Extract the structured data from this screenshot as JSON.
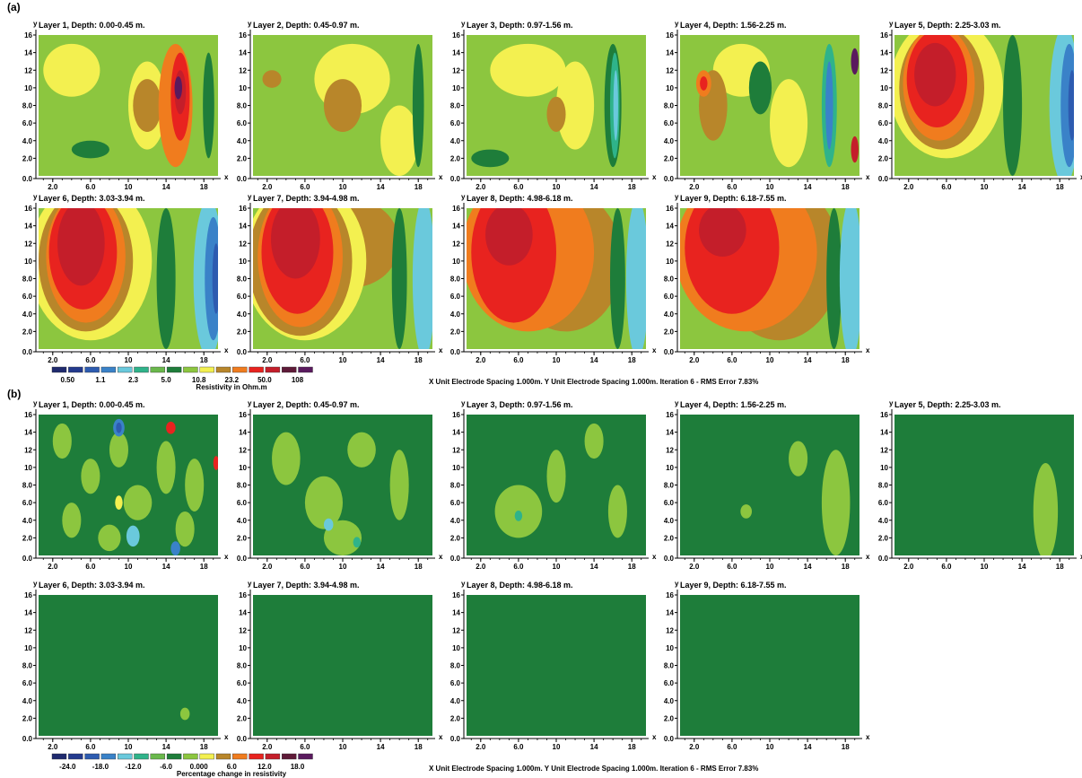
{
  "panel_a": {
    "label": "(a)",
    "legend_title": "Resistivity in Ohm.m",
    "legend_values": [
      "0.50",
      "1.1",
      "2.3",
      "5.0",
      "10.8",
      "23.2",
      "50.0",
      "108"
    ],
    "footer": "X Unit Electrode Spacing 1.000m.  Y Unit Electrode Spacing 1.000m.   Iteration 6 - RMS Error 7.83%"
  },
  "panel_b": {
    "label": "(b)",
    "legend_title": "Percentage change in resistivity",
    "legend_values": [
      "-24.0",
      "-18.0",
      "-12.0",
      "-6.0",
      "0.000",
      "6.0",
      "12.0",
      "18.0"
    ],
    "footer": "X Unit Electrode Spacing 1.000m.  Y Unit Electrode Spacing 1.000m.   Iteration 6 - RMS Error 7.83%"
  },
  "palette": [
    "#1f2a6e",
    "#233a8e",
    "#2d5bb0",
    "#3a82c8",
    "#6ac9dc",
    "#2fb38a",
    "#6ab84c",
    "#1e7d3a",
    "#8cc63f",
    "#f3f050",
    "#b8862a",
    "#f07c1e",
    "#e8231f",
    "#c41e2a",
    "#5e1a38",
    "#5a1a5e"
  ],
  "axes": {
    "y_label": "y",
    "x_label": "x",
    "y_ticks": [
      "0.0",
      "2.0",
      "4.0",
      "6.0",
      "8.0",
      "10",
      "12",
      "14",
      "16"
    ],
    "x_ticks": [
      "2.0",
      "6.0",
      "10",
      "14",
      "18"
    ]
  },
  "chart_data": [
    {
      "panel": "(a)",
      "type": "heatmap",
      "quantity": "Resistivity in Ohm.m",
      "xlim": [
        0.5,
        19.5
      ],
      "ylim": [
        0,
        16
      ],
      "x_ticks": [
        2,
        6,
        10,
        14,
        18
      ],
      "y_ticks": [
        0,
        2,
        4,
        6,
        8,
        10,
        12,
        14,
        16
      ],
      "legend_levels": [
        0.5,
        1.1,
        2.3,
        5.0,
        10.8,
        23.2,
        50.0,
        108
      ],
      "layers": [
        {
          "title": "Layer 1, Depth: 0.00-0.45 m.",
          "features": [
            {
              "level": 9,
              "x": 4,
              "y": 12,
              "rx": 3,
              "ry": 3
            },
            {
              "level": 9,
              "x": 12,
              "y": 8,
              "rx": 2,
              "ry": 5
            },
            {
              "level": 10,
              "x": 12,
              "y": 8,
              "rx": 1.5,
              "ry": 3
            },
            {
              "level": 11,
              "x": 15,
              "y": 8,
              "rx": 1.8,
              "ry": 7
            },
            {
              "level": 12,
              "x": 15.5,
              "y": 9,
              "rx": 1.0,
              "ry": 5
            },
            {
              "level": 13,
              "x": 15.5,
              "y": 9.5,
              "rx": 0.6,
              "ry": 2.5
            },
            {
              "level": 15,
              "x": 15.3,
              "y": 10,
              "rx": 0.4,
              "ry": 1.3
            },
            {
              "level": 7,
              "x": 6,
              "y": 3,
              "rx": 2,
              "ry": 1
            },
            {
              "level": 7,
              "x": 18.5,
              "y": 8,
              "rx": 0.6,
              "ry": 6
            }
          ]
        },
        {
          "title": "Layer 2, Depth: 0.45-0.97 m.",
          "features": [
            {
              "level": 9,
              "x": 11,
              "y": 11,
              "rx": 4,
              "ry": 4
            },
            {
              "level": 10,
              "x": 10,
              "y": 8,
              "rx": 2,
              "ry": 3
            },
            {
              "level": 9,
              "x": 16,
              "y": 4,
              "rx": 2,
              "ry": 4
            },
            {
              "level": 7,
              "x": 18,
              "y": 8,
              "rx": 0.6,
              "ry": 7
            },
            {
              "level": 10,
              "x": 2.5,
              "y": 11,
              "rx": 1,
              "ry": 1
            }
          ]
        },
        {
          "title": "Layer 3, Depth: 0.97-1.56 m.",
          "features": [
            {
              "level": 9,
              "x": 7,
              "y": 12,
              "rx": 4,
              "ry": 3
            },
            {
              "level": 9,
              "x": 12,
              "y": 8,
              "rx": 2,
              "ry": 5
            },
            {
              "level": 10,
              "x": 10,
              "y": 7,
              "rx": 1,
              "ry": 2
            },
            {
              "level": 7,
              "x": 16,
              "y": 8,
              "rx": 0.9,
              "ry": 7
            },
            {
              "level": 5,
              "x": 16.2,
              "y": 8,
              "rx": 0.5,
              "ry": 6
            },
            {
              "level": 4,
              "x": 16.3,
              "y": 8,
              "rx": 0.25,
              "ry": 4
            },
            {
              "level": 7,
              "x": 3,
              "y": 2,
              "rx": 2,
              "ry": 1
            }
          ]
        },
        {
          "title": "Layer 4, Depth: 1.56-2.25 m.",
          "features": [
            {
              "level": 9,
              "x": 7,
              "y": 12,
              "rx": 3,
              "ry": 3
            },
            {
              "level": 10,
              "x": 4,
              "y": 8,
              "rx": 1.5,
              "ry": 4
            },
            {
              "level": 11,
              "x": 3,
              "y": 10.5,
              "rx": 0.8,
              "ry": 1.5
            },
            {
              "level": 12,
              "x": 3,
              "y": 10.5,
              "rx": 0.4,
              "ry": 0.8
            },
            {
              "level": 9,
              "x": 12,
              "y": 6,
              "rx": 2,
              "ry": 5
            },
            {
              "level": 5,
              "x": 16.3,
              "y": 8,
              "rx": 0.8,
              "ry": 7
            },
            {
              "level": 3,
              "x": 16.3,
              "y": 8,
              "rx": 0.4,
              "ry": 5
            },
            {
              "level": 13,
              "x": 19,
              "y": 3,
              "rx": 0.4,
              "ry": 1.5
            },
            {
              "level": 15,
              "x": 19,
              "y": 13,
              "rx": 0.4,
              "ry": 1.5
            },
            {
              "level": 7,
              "x": 9,
              "y": 10,
              "rx": 1.2,
              "ry": 3
            }
          ]
        },
        {
          "title": "Layer 5, Depth: 2.25-3.03 m.",
          "features": [
            {
              "level": 9,
              "x": 6,
              "y": 10,
              "rx": 6,
              "ry": 8
            },
            {
              "level": 10,
              "x": 5.5,
              "y": 10,
              "rx": 4.5,
              "ry": 7
            },
            {
              "level": 11,
              "x": 5.2,
              "y": 10.5,
              "rx": 3.8,
              "ry": 6.5
            },
            {
              "level": 12,
              "x": 5,
              "y": 11,
              "rx": 3.2,
              "ry": 5.5
            },
            {
              "level": 13,
              "x": 4.8,
              "y": 11.5,
              "rx": 2.2,
              "ry": 3.6
            },
            {
              "level": 7,
              "x": 13,
              "y": 8,
              "rx": 1,
              "ry": 8
            },
            {
              "level": 4,
              "x": 18.5,
              "y": 8,
              "rx": 1.6,
              "ry": 9
            },
            {
              "level": 3,
              "x": 19.0,
              "y": 8,
              "rx": 0.9,
              "ry": 7
            },
            {
              "level": 2,
              "x": 19.3,
              "y": 8,
              "rx": 0.4,
              "ry": 4
            }
          ]
        },
        {
          "title": "Layer 6, Depth: 3.03-3.94 m.",
          "features": [
            {
              "level": 9,
              "x": 6,
              "y": 10,
              "rx": 6.5,
              "ry": 9
            },
            {
              "level": 10,
              "x": 5.5,
              "y": 10,
              "rx": 5,
              "ry": 8
            },
            {
              "level": 11,
              "x": 5.5,
              "y": 10.5,
              "rx": 4.2,
              "ry": 7.5
            },
            {
              "level": 12,
              "x": 5.2,
              "y": 11,
              "rx": 3.6,
              "ry": 6.5
            },
            {
              "level": 13,
              "x": 5,
              "y": 12,
              "rx": 2.5,
              "ry": 4.8
            },
            {
              "level": 7,
              "x": 14,
              "y": 8,
              "rx": 1,
              "ry": 8
            },
            {
              "level": 4,
              "x": 18.5,
              "y": 8,
              "rx": 1.6,
              "ry": 9
            },
            {
              "level": 3,
              "x": 19.0,
              "y": 8,
              "rx": 0.9,
              "ry": 7
            },
            {
              "level": 2,
              "x": 19.3,
              "y": 8,
              "rx": 0.4,
              "ry": 4
            }
          ]
        },
        {
          "title": "Layer 7, Depth: 3.94-4.98 m.",
          "features": [
            {
              "level": 10,
              "x": 11,
              "y": 12,
              "rx": 5,
              "ry": 5
            },
            {
              "level": 9,
              "x": 6,
              "y": 10,
              "rx": 6.5,
              "ry": 9
            },
            {
              "level": 10,
              "x": 5.5,
              "y": 10,
              "rx": 5.5,
              "ry": 8.5
            },
            {
              "level": 11,
              "x": 5.5,
              "y": 10.5,
              "rx": 4.5,
              "ry": 8
            },
            {
              "level": 12,
              "x": 5.2,
              "y": 11,
              "rx": 3.8,
              "ry": 7
            },
            {
              "level": 13,
              "x": 5,
              "y": 12.5,
              "rx": 2.6,
              "ry": 4.5
            },
            {
              "level": 7,
              "x": 16,
              "y": 8,
              "rx": 0.8,
              "ry": 8
            },
            {
              "level": 4,
              "x": 18.6,
              "y": 8,
              "rx": 1.2,
              "ry": 9
            }
          ]
        },
        {
          "title": "Layer 8, Depth: 4.98-6.18 m.",
          "features": [
            {
              "level": 10,
              "x": 11,
              "y": 10,
              "rx": 6,
              "ry": 8
            },
            {
              "level": 11,
              "x": 7,
              "y": 11,
              "rx": 7,
              "ry": 9
            },
            {
              "level": 12,
              "x": 5.5,
              "y": 11,
              "rx": 4.5,
              "ry": 8
            },
            {
              "level": 13,
              "x": 5,
              "y": 13,
              "rx": 2.5,
              "ry": 3.5
            },
            {
              "level": 7,
              "x": 16.5,
              "y": 8,
              "rx": 0.8,
              "ry": 8
            },
            {
              "level": 4,
              "x": 18.6,
              "y": 8,
              "rx": 1.2,
              "ry": 9
            }
          ]
        },
        {
          "title": "Layer 9, Depth: 6.18-7.55 m.",
          "features": [
            {
              "level": 10,
              "x": 11,
              "y": 10,
              "rx": 6.5,
              "ry": 9
            },
            {
              "level": 11,
              "x": 7.5,
              "y": 11,
              "rx": 7.5,
              "ry": 9
            },
            {
              "level": 12,
              "x": 6,
              "y": 11.5,
              "rx": 5,
              "ry": 7.5
            },
            {
              "level": 13,
              "x": 5,
              "y": 13.5,
              "rx": 2.5,
              "ry": 3
            },
            {
              "level": 7,
              "x": 16.8,
              "y": 8,
              "rx": 0.8,
              "ry": 8
            },
            {
              "level": 4,
              "x": 18.6,
              "y": 8,
              "rx": 1.2,
              "ry": 9
            }
          ]
        }
      ]
    },
    {
      "panel": "(b)",
      "type": "heatmap",
      "quantity": "Percentage change in resistivity",
      "xlim": [
        0.5,
        19.5
      ],
      "ylim": [
        0,
        16
      ],
      "x_ticks": [
        2,
        6,
        10,
        14,
        18
      ],
      "y_ticks": [
        0,
        2,
        4,
        6,
        8,
        10,
        12,
        14,
        16
      ],
      "legend_levels": [
        -24.0,
        -18.0,
        -12.0,
        -6.0,
        0.0,
        6.0,
        12.0,
        18.0
      ],
      "layers": [
        {
          "title": "Layer 1, Depth: 0.00-0.45 m.",
          "features": [
            {
              "level": 8,
              "x": 3,
              "y": 13,
              "rx": 1,
              "ry": 2
            },
            {
              "level": 8,
              "x": 6,
              "y": 9,
              "rx": 1,
              "ry": 2
            },
            {
              "level": 8,
              "x": 9,
              "y": 12,
              "rx": 1,
              "ry": 2
            },
            {
              "level": 8,
              "x": 11,
              "y": 6,
              "rx": 1.5,
              "ry": 2
            },
            {
              "level": 8,
              "x": 14,
              "y": 10,
              "rx": 1,
              "ry": 3
            },
            {
              "level": 8,
              "x": 17,
              "y": 8,
              "rx": 1,
              "ry": 3
            },
            {
              "level": 8,
              "x": 4,
              "y": 4,
              "rx": 1,
              "ry": 2
            },
            {
              "level": 8,
              "x": 16,
              "y": 3,
              "rx": 1,
              "ry": 2
            },
            {
              "level": 8,
              "x": 8,
              "y": 2,
              "rx": 1.2,
              "ry": 1.5
            },
            {
              "level": 3,
              "x": 9,
              "y": 14.5,
              "rx": 0.6,
              "ry": 1
            },
            {
              "level": 2,
              "x": 9,
              "y": 14.5,
              "rx": 0.3,
              "ry": 0.6
            },
            {
              "level": 4,
              "x": 10.5,
              "y": 2.2,
              "rx": 0.7,
              "ry": 1.2
            },
            {
              "level": 3,
              "x": 15,
              "y": 0.8,
              "rx": 0.5,
              "ry": 0.8
            },
            {
              "level": 12,
              "x": 14.5,
              "y": 14.5,
              "rx": 0.5,
              "ry": 0.7
            },
            {
              "level": 9,
              "x": 9,
              "y": 6,
              "rx": 0.4,
              "ry": 0.8
            },
            {
              "level": 12,
              "x": 19.3,
              "y": 10.5,
              "rx": 0.3,
              "ry": 0.8
            }
          ]
        },
        {
          "title": "Layer 2, Depth: 0.45-0.97 m.",
          "features": [
            {
              "level": 8,
              "x": 4,
              "y": 11,
              "rx": 1.5,
              "ry": 3
            },
            {
              "level": 8,
              "x": 8,
              "y": 6,
              "rx": 2,
              "ry": 3
            },
            {
              "level": 8,
              "x": 12,
              "y": 12,
              "rx": 1.5,
              "ry": 2
            },
            {
              "level": 8,
              "x": 16,
              "y": 8,
              "rx": 1,
              "ry": 4
            },
            {
              "level": 8,
              "x": 10,
              "y": 2,
              "rx": 2,
              "ry": 2
            },
            {
              "level": 4,
              "x": 8.5,
              "y": 3.5,
              "rx": 0.5,
              "ry": 0.7
            },
            {
              "level": 5,
              "x": 11.5,
              "y": 1.5,
              "rx": 0.4,
              "ry": 0.6
            }
          ]
        },
        {
          "title": "Layer 3, Depth: 0.97-1.56 m.",
          "features": [
            {
              "level": 8,
              "x": 6,
              "y": 5,
              "rx": 2.5,
              "ry": 3
            },
            {
              "level": 8,
              "x": 10,
              "y": 9,
              "rx": 1,
              "ry": 3
            },
            {
              "level": 8,
              "x": 14,
              "y": 13,
              "rx": 1,
              "ry": 2
            },
            {
              "level": 8,
              "x": 16.5,
              "y": 5,
              "rx": 1,
              "ry": 3
            },
            {
              "level": 5,
              "x": 6,
              "y": 4.5,
              "rx": 0.4,
              "ry": 0.6
            }
          ]
        },
        {
          "title": "Layer 4, Depth: 1.56-2.25 m.",
          "features": [
            {
              "level": 8,
              "x": 13,
              "y": 11,
              "rx": 1,
              "ry": 2
            },
            {
              "level": 8,
              "x": 17,
              "y": 6,
              "rx": 1.5,
              "ry": 6
            },
            {
              "level": 8,
              "x": 7.5,
              "y": 5,
              "rx": 0.6,
              "ry": 0.8
            }
          ]
        },
        {
          "title": "Layer 5, Depth: 2.25-3.03 m.",
          "features": [
            {
              "level": 8,
              "x": 16.5,
              "y": 5,
              "rx": 1.3,
              "ry": 5.5
            }
          ]
        },
        {
          "title": "Layer 6, Depth: 3.03-3.94 m.",
          "features": [
            {
              "level": 8,
              "x": 16,
              "y": 2.5,
              "rx": 0.5,
              "ry": 0.7
            }
          ]
        },
        {
          "title": "Layer 7, Depth: 3.94-4.98 m.",
          "features": []
        },
        {
          "title": "Layer 8, Depth: 4.98-6.18 m.",
          "features": []
        },
        {
          "title": "Layer 9, Depth: 6.18-7.55 m.",
          "features": []
        }
      ],
      "background_level": 7
    }
  ]
}
